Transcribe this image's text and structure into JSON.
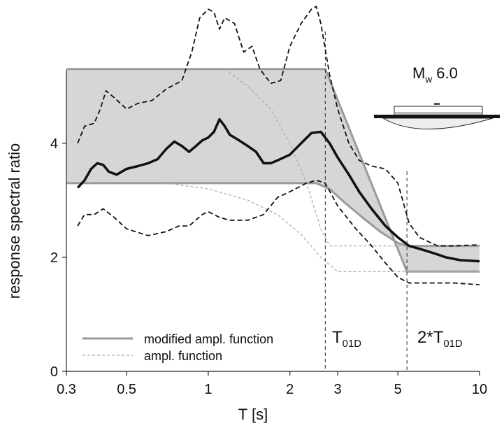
{
  "chart_data": {
    "type": "line",
    "xlabel": "T [s]",
    "ylabel": "response spectral ratio",
    "xscale": "log",
    "xlim": [
      0.3,
      10
    ],
    "ylim": [
      0,
      6.5
    ],
    "xticks": [
      0.3,
      0.5,
      1,
      2,
      3,
      5,
      10
    ],
    "yticks": [
      0,
      2,
      4
    ],
    "legend": "lower left",
    "bands": [
      {
        "name": "modified ampl. function",
        "color": "#9a9a9a",
        "fill": "#d6d6d6",
        "upper": {
          "x": [
            0.3,
            2.7,
            5.4,
            10
          ],
          "values": [
            5.3,
            5.3,
            1.75,
            1.75
          ]
        },
        "lower": {
          "x": [
            0.3,
            2.5,
            2.8,
            3.2,
            3.7,
            4.3,
            5.0,
            5.4,
            10
          ],
          "values": [
            3.3,
            3.3,
            3.2,
            2.95,
            2.7,
            2.45,
            2.25,
            2.2,
            2.2
          ]
        }
      }
    ],
    "series": [
      {
        "name": "ampl. function",
        "color": "#aaaaaa",
        "width": 1.2,
        "dash": "4 3",
        "x": [
          1.15,
          1.4,
          1.7,
          2.0,
          2.3,
          2.6,
          2.8,
          3.5,
          10,
          null,
          0.7,
          1.0,
          1.4,
          1.8,
          2.2,
          2.6,
          3.0,
          3.5,
          10
        ],
        "values": [
          5.3,
          5.0,
          4.6,
          4.0,
          3.3,
          2.5,
          2.2,
          2.2,
          2.2,
          null,
          3.3,
          3.2,
          3.0,
          2.75,
          2.4,
          2.0,
          1.75,
          1.75,
          1.75
        ]
      },
      {
        "color": "#111111",
        "width": 1.8,
        "dash": "7 4",
        "x": [
          0.33,
          0.35,
          0.38,
          0.4,
          0.42,
          0.45,
          0.5,
          0.55,
          0.62,
          0.7,
          0.8,
          0.87,
          0.93,
          1.0,
          1.05,
          1.1,
          1.15,
          1.25,
          1.35,
          1.45,
          1.55,
          1.7,
          1.85,
          2.0,
          2.2,
          2.4,
          2.5,
          2.6,
          2.8,
          3.0,
          3.3,
          3.6,
          4.0,
          4.5,
          5.0,
          5.5,
          6.0,
          7,
          8,
          10
        ],
        "values": [
          4.0,
          4.3,
          4.35,
          4.6,
          4.92,
          4.8,
          4.6,
          4.7,
          4.75,
          4.95,
          5.1,
          5.6,
          6.2,
          6.35,
          6.3,
          6.0,
          6.2,
          6.1,
          5.6,
          5.7,
          5.3,
          5.05,
          5.1,
          5.7,
          6.1,
          6.35,
          6.4,
          6.1,
          5.2,
          4.6,
          4.0,
          3.7,
          3.6,
          3.55,
          3.3,
          2.6,
          2.35,
          2.2,
          2.2,
          2.22
        ]
      },
      {
        "color": "#111111",
        "width": 1.8,
        "dash": "7 4",
        "x": [
          0.33,
          0.35,
          0.38,
          0.41,
          0.45,
          0.5,
          0.6,
          0.7,
          0.78,
          0.85,
          0.95,
          1.0,
          1.1,
          1.2,
          1.4,
          1.6,
          1.8,
          2.0,
          2.3,
          2.5,
          2.7,
          3.0,
          3.5,
          4.0,
          4.5,
          5.0,
          5.5,
          6,
          8,
          10
        ],
        "values": [
          2.55,
          2.75,
          2.75,
          2.85,
          2.7,
          2.5,
          2.38,
          2.45,
          2.55,
          2.55,
          2.75,
          2.8,
          2.7,
          2.65,
          2.65,
          2.75,
          3.05,
          3.15,
          3.3,
          3.35,
          3.3,
          2.9,
          2.5,
          2.2,
          1.9,
          1.65,
          1.55,
          1.55,
          1.55,
          1.52
        ]
      },
      {
        "color": "#111111",
        "width": 3.5,
        "dash": "none",
        "x": [
          0.33,
          0.35,
          0.37,
          0.39,
          0.41,
          0.43,
          0.46,
          0.5,
          0.55,
          0.6,
          0.65,
          0.7,
          0.75,
          0.8,
          0.85,
          0.9,
          0.95,
          1.0,
          1.05,
          1.1,
          1.15,
          1.2,
          1.3,
          1.4,
          1.5,
          1.6,
          1.7,
          1.8,
          2.0,
          2.2,
          2.4,
          2.6,
          2.8,
          3.0,
          3.3,
          3.6,
          4.0,
          4.5,
          5.0,
          5.5,
          6,
          6.5,
          7,
          7.5,
          8.5,
          10
        ],
        "values": [
          3.22,
          3.35,
          3.55,
          3.65,
          3.62,
          3.5,
          3.45,
          3.55,
          3.6,
          3.65,
          3.72,
          3.9,
          4.03,
          3.95,
          3.85,
          3.95,
          4.05,
          4.1,
          4.2,
          4.42,
          4.3,
          4.15,
          4.05,
          3.95,
          3.85,
          3.65,
          3.65,
          3.7,
          3.8,
          4.0,
          4.18,
          4.2,
          4.0,
          3.75,
          3.45,
          3.15,
          2.85,
          2.55,
          2.35,
          2.2,
          2.15,
          2.1,
          2.05,
          2.0,
          1.95,
          1.93
        ]
      }
    ],
    "vlines": [
      {
        "x": 2.7,
        "text": "T",
        "sub": "01D"
      },
      {
        "x": 5.4,
        "text": "2*T",
        "sub": "01D"
      }
    ],
    "annotations": [
      {
        "text": "M",
        "sub": "w",
        "after": " 6.0"
      }
    ]
  }
}
